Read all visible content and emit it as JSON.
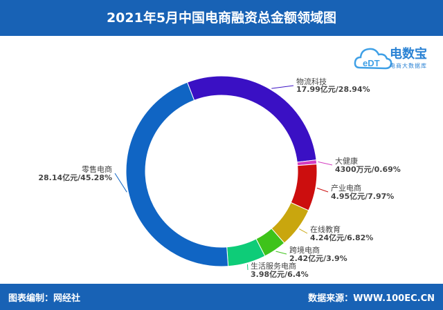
{
  "header": {
    "title": "2021年5月中国电商融资总金额领域图"
  },
  "footer": {
    "left": "图表编制：网经社",
    "right": "数据来源：WWW.100EC.CN"
  },
  "logo": {
    "brand": "电数宝",
    "sub": "电商大数据库",
    "mark": "eDT"
  },
  "chart_data": {
    "type": "pie",
    "title": "2021年5月中国电商融资总金额领域图",
    "donut": true,
    "start_angle_deg": -21,
    "slices": [
      {
        "name": "物流科技",
        "label": "17.99亿元/28.94%",
        "value": 28.94,
        "color": "#3a10c4"
      },
      {
        "name": "大健康",
        "label": "4300万元/0.69%",
        "value": 0.69,
        "color": "#d43cc0"
      },
      {
        "name": "产业电商",
        "label": "4.95亿元/7.97%",
        "value": 7.97,
        "color": "#cc0e0e"
      },
      {
        "name": "在线教育",
        "label": "4.24亿元/6.82%",
        "value": 6.82,
        "color": "#c9a60e"
      },
      {
        "name": "跨境电商",
        "label": "2.42亿元/3.9%",
        "value": 3.9,
        "color": "#3ec31a"
      },
      {
        "name": "生活服务电商",
        "label": "3.98亿元/6.4%",
        "value": 6.4,
        "color": "#0ecc78"
      },
      {
        "name": "零售电商",
        "label": "28.14亿元/45.28%",
        "value": 45.28,
        "color": "#1065c4"
      }
    ]
  }
}
